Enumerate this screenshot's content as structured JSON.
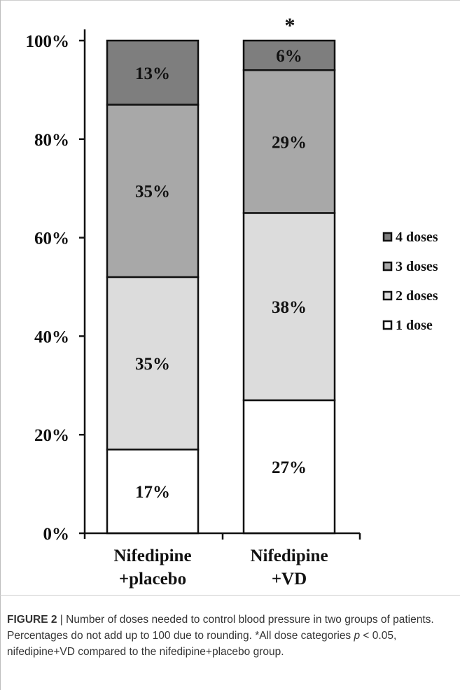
{
  "chart_data": {
    "type": "bar",
    "stacked": true,
    "categories": [
      [
        "Nifedipine",
        "+placebo"
      ],
      [
        "Nifedipine",
        "+VD"
      ]
    ],
    "series": [
      {
        "name": "1 dose",
        "values": [
          17,
          27
        ],
        "labels": [
          "17%",
          "27%"
        ],
        "color": "#ffffff"
      },
      {
        "name": "2 doses",
        "values": [
          35,
          38
        ],
        "labels": [
          "35%",
          "38%"
        ],
        "color": "#dcdcdc"
      },
      {
        "name": "3 doses",
        "values": [
          35,
          29
        ],
        "labels": [
          "35%",
          "29%"
        ],
        "color": "#a8a8a8"
      },
      {
        "name": "4 doses",
        "values": [
          13,
          6
        ],
        "labels": [
          "13%",
          "6%"
        ],
        "color": "#7e7e7e"
      }
    ],
    "ylim": [
      0,
      100
    ],
    "yticks": [
      "0%",
      "20%",
      "40%",
      "60%",
      "80%",
      "100%"
    ],
    "annotation": "*",
    "legend_position": "right",
    "grid": false
  },
  "caption": {
    "label": "FIGURE 2",
    "separator": "|",
    "text_before_p": "Number of doses needed to control blood pressure in two groups of patients. Percentages do not add up to 100 due to rounding. *All dose categories ",
    "p_symbol": "p",
    "text_after_p": " < 0.05, nifedipine+VD compared to the nifedipine+placebo group."
  }
}
